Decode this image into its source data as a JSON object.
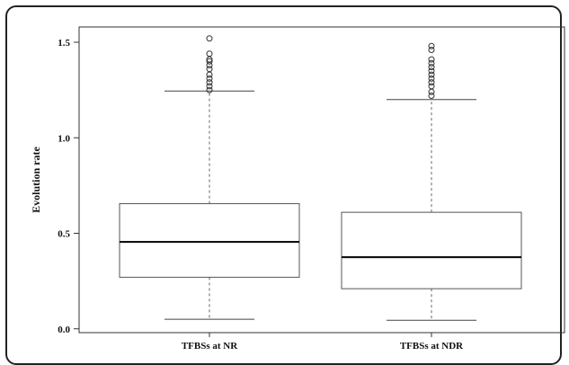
{
  "chart_data": {
    "type": "box",
    "title": "",
    "xlabel": "",
    "ylabel": "Evolution rate",
    "ylim": [
      -0.02,
      1.58
    ],
    "yticks": [
      0.0,
      0.5,
      1.0,
      1.5
    ],
    "ytick_labels": [
      "0.0",
      "0.5",
      "1.0",
      "1.5"
    ],
    "categories": [
      "TFBSs at NR",
      "TFBSs at NDR"
    ],
    "boxes": [
      {
        "label": "TFBSs at NR",
        "whisker_low": 0.05,
        "q1": 0.27,
        "median": 0.455,
        "q3": 0.655,
        "whisker_high": 1.245,
        "outliers": [
          1.25,
          1.27,
          1.29,
          1.31,
          1.33,
          1.36,
          1.38,
          1.4,
          1.41,
          1.44,
          1.52
        ]
      },
      {
        "label": "TFBSs at NDR",
        "whisker_low": 0.045,
        "q1": 0.21,
        "median": 0.375,
        "q3": 0.61,
        "whisker_high": 1.2,
        "outliers": [
          1.22,
          1.24,
          1.27,
          1.29,
          1.31,
          1.33,
          1.35,
          1.37,
          1.39,
          1.41,
          1.46,
          1.48
        ]
      }
    ],
    "grid": false,
    "legend": "none"
  }
}
